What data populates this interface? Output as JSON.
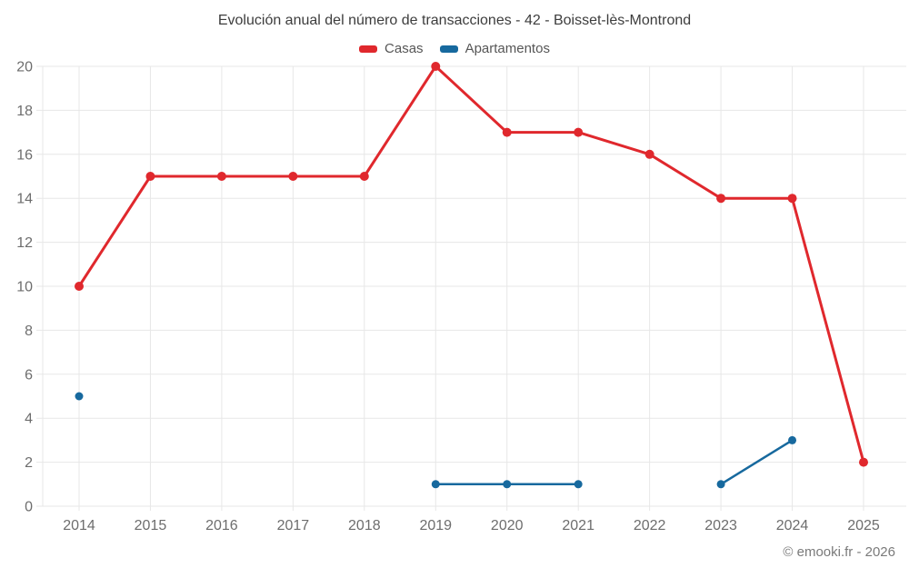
{
  "chart_data": {
    "type": "line",
    "title": "Evolución anual del número de transacciones - 42 - Boisset-lès-Montrond",
    "categories": [
      "2014",
      "2015",
      "2016",
      "2017",
      "2018",
      "2019",
      "2020",
      "2021",
      "2022",
      "2023",
      "2024",
      "2025"
    ],
    "series": [
      {
        "name": "Casas",
        "color": "#e0282d",
        "values": [
          10,
          15,
          15,
          15,
          15,
          20,
          17,
          17,
          16,
          14,
          14,
          2
        ]
      },
      {
        "name": "Apartamentos",
        "color": "#17699e",
        "values": [
          5,
          null,
          null,
          null,
          null,
          1,
          1,
          1,
          null,
          1,
          3,
          null
        ]
      }
    ],
    "xlabel": "",
    "ylabel": "",
    "ylim": [
      0,
      20
    ],
    "y_ticks": [
      0,
      2,
      4,
      6,
      8,
      10,
      12,
      14,
      16,
      18,
      20
    ],
    "grid": true,
    "legend_position": "top",
    "grid_color": "#e7e7e7",
    "tick_label_color": "#6d6d6d"
  },
  "footer": {
    "credit": "© emooki.fr - 2026"
  }
}
